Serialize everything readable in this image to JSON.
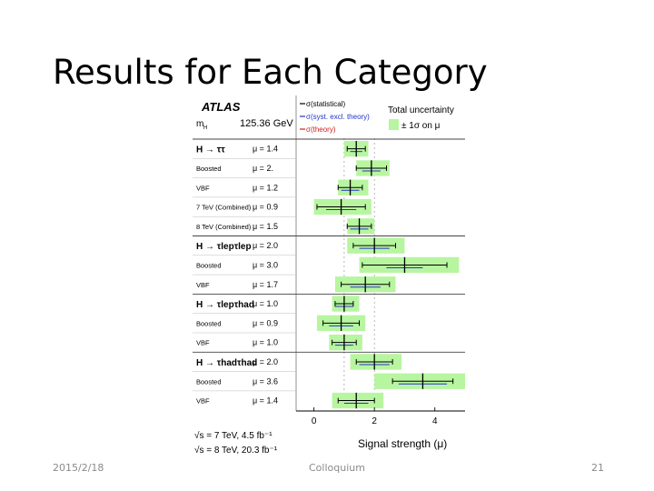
{
  "slide": {
    "title": "Results for Each Category",
    "footer_date": "2015/2/18",
    "footer_center": "Colloquium",
    "page_number": "21"
  },
  "chart_data": {
    "type": "scatter",
    "atlas_label": "ATLAS",
    "mass_label": "m",
    "mass_sub": "H",
    "mass_value": "125.36 GeV",
    "legend": {
      "stat": "σ(statistical)",
      "syst": "σ(syst. excl. theory)",
      "theory": "σ(theory)",
      "total_title": "Total uncertainty",
      "total_band": "± 1σ on μ"
    },
    "xlabel": "Signal strength (μ)",
    "xlim": [
      -0.5,
      5.0
    ],
    "xticks": [
      "0",
      "2",
      "4"
    ],
    "energy_7": "√s = 7 TeV, 4.5 fb⁻¹",
    "energy_8": "√s = 8 TeV, 20.3 fb⁻¹",
    "colors": {
      "band": "#b8f5a0",
      "stat": "#000000",
      "syst": "#2233cc",
      "theory": "#cc2222"
    },
    "rows": [
      {
        "label": "H → ττ",
        "header": true,
        "mu_text": "μ = 1.4",
        "mu": 1.4,
        "lo": 1.0,
        "hi": 1.8,
        "stat": 0.3,
        "syst": 0.2
      },
      {
        "label": "Boosted",
        "header": false,
        "mu_text": "μ = 2.",
        "mu": 1.9,
        "lo": 1.4,
        "hi": 2.5,
        "stat": 0.5,
        "syst": 0.3
      },
      {
        "label": "VBF",
        "header": false,
        "mu_text": "μ = 1.2",
        "mu": 1.2,
        "lo": 0.8,
        "hi": 1.8,
        "stat": 0.4,
        "syst": 0.3
      },
      {
        "label": "7 TeV (Combined)",
        "header": false,
        "mu_text": "μ = 0.9",
        "mu": 0.9,
        "lo": 0.0,
        "hi": 1.9,
        "stat": 0.8,
        "syst": 0.5
      },
      {
        "label": "8 TeV (Combined)",
        "header": false,
        "mu_text": "μ = 1.5",
        "mu": 1.5,
        "lo": 1.1,
        "hi": 2.0,
        "stat": 0.4,
        "syst": 0.3
      },
      {
        "label": "H → τlepτlep",
        "header": true,
        "mu_text": "μ = 2.0",
        "mu": 2.0,
        "lo": 1.1,
        "hi": 3.0,
        "stat": 0.7,
        "syst": 0.5
      },
      {
        "label": "Boosted",
        "header": false,
        "mu_text": "μ = 3.0",
        "mu": 3.0,
        "lo": 1.5,
        "hi": 4.8,
        "stat": 1.4,
        "syst": 0.6
      },
      {
        "label": "VBF",
        "header": false,
        "mu_text": "μ = 1.7",
        "mu": 1.7,
        "lo": 0.7,
        "hi": 2.7,
        "stat": 0.8,
        "syst": 0.5
      },
      {
        "label": "H → τlepτhad",
        "header": true,
        "mu_text": "μ = 1.0",
        "mu": 1.0,
        "lo": 0.6,
        "hi": 1.5,
        "stat": 0.3,
        "syst": 0.3
      },
      {
        "label": "Boosted",
        "header": false,
        "mu_text": "μ = 0.9",
        "mu": 0.9,
        "lo": 0.1,
        "hi": 1.7,
        "stat": 0.6,
        "syst": 0.4
      },
      {
        "label": "VBF",
        "header": false,
        "mu_text": "μ = 1.0",
        "mu": 1.0,
        "lo": 0.5,
        "hi": 1.6,
        "stat": 0.4,
        "syst": 0.3
      },
      {
        "label": "H → τhadτhad",
        "header": true,
        "mu_text": "μ = 2.0",
        "mu": 2.0,
        "lo": 1.2,
        "hi": 2.9,
        "stat": 0.6,
        "syst": 0.5
      },
      {
        "label": "Boosted",
        "header": false,
        "mu_text": "μ = 3.6",
        "mu": 3.6,
        "lo": 2.0,
        "hi": 5.0,
        "stat": 1.0,
        "syst": 0.8
      },
      {
        "label": "VBF",
        "header": false,
        "mu_text": "μ = 1.4",
        "mu": 1.4,
        "lo": 0.6,
        "hi": 2.3,
        "stat": 0.6,
        "syst": 0.4
      }
    ]
  }
}
